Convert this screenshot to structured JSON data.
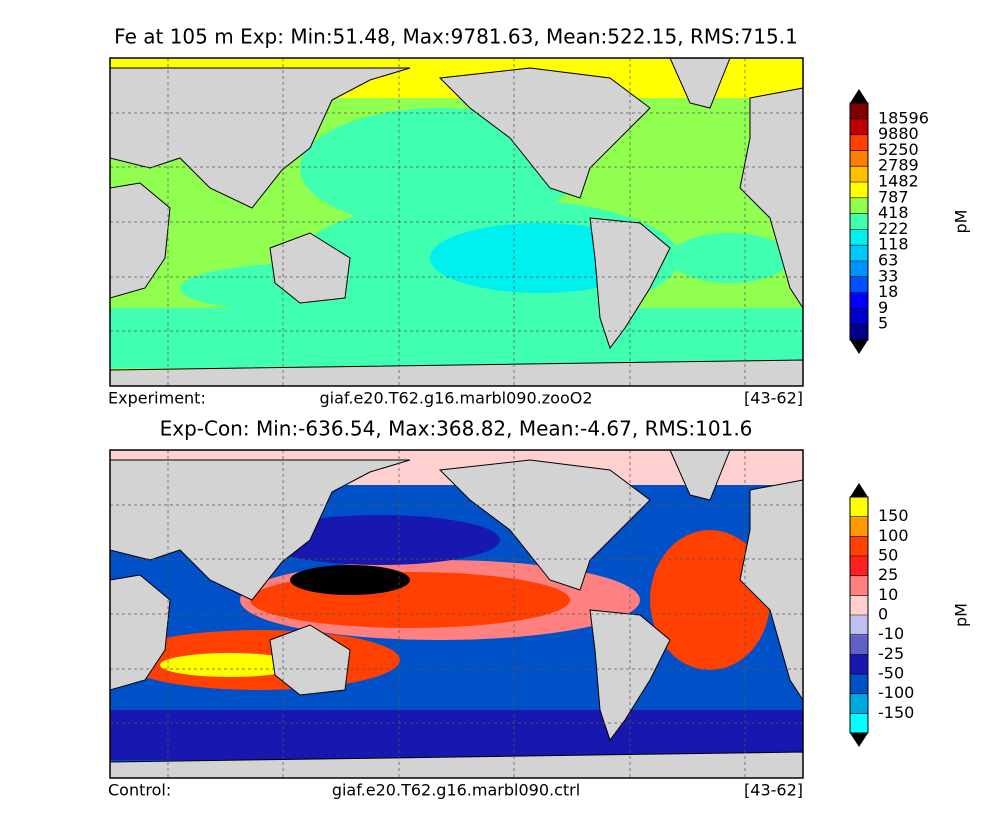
{
  "panels": [
    {
      "title": "Fe at 105 m Exp: Min:51.48, Max:9781.63, Mean:522.15, RMS:715.1",
      "footer": {
        "left": "Experiment:",
        "center": "giaf.e20.T62.g16.marbl090.zooO2",
        "right": "[43-62]"
      },
      "colorbar": {
        "label": "pM",
        "levels": [
          5,
          9,
          18,
          33,
          63,
          118,
          222,
          418,
          787,
          1482,
          2789,
          5250,
          9880,
          18596
        ],
        "colors": [
          "#00008b",
          "#0000cd",
          "#0000ff",
          "#0050ff",
          "#0090ff",
          "#00c8ff",
          "#00f0f0",
          "#40ffb0",
          "#90ff50",
          "#ffff00",
          "#ffc000",
          "#ff8000",
          "#ff4000",
          "#c00000",
          "#800000"
        ]
      }
    },
    {
      "title": "Exp-Con: Min:-636.54, Max:368.82, Mean:-4.67, RMS:101.6",
      "footer": {
        "left": "Control:",
        "center": "giaf.e20.T62.g16.marbl090.ctrl",
        "right": "[43-62]"
      },
      "colorbar": {
        "label": "pM",
        "levels": [
          -150,
          -100,
          -50,
          -25,
          -10,
          0,
          10,
          25,
          50,
          100,
          150
        ],
        "colors": [
          "#00ffff",
          "#00a8e0",
          "#0050c8",
          "#1818b0",
          "#6060c8",
          "#c0c0f0",
          "#ffd0d0",
          "#ff8080",
          "#ff2020",
          "#ff4000",
          "#ff9900",
          "#ffff00"
        ]
      }
    }
  ]
}
